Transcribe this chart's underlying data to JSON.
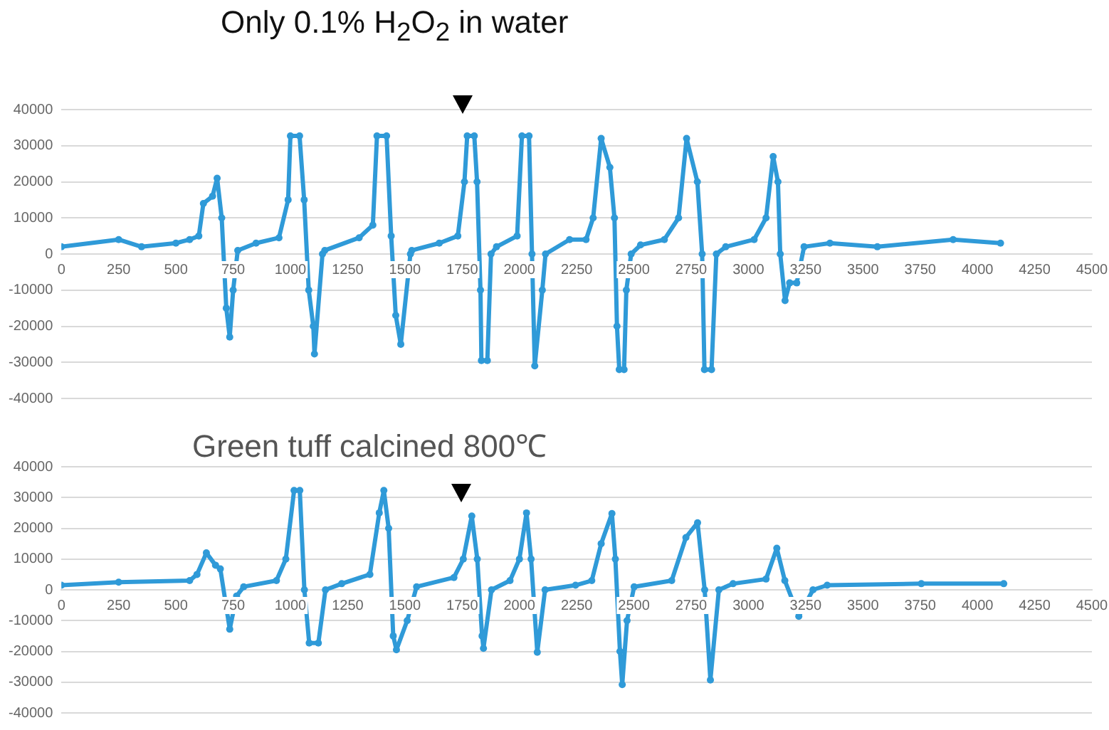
{
  "chart_data": [
    {
      "type": "line",
      "title": "Only 0.1% H$_{2}$O$_{2}$ in water",
      "marker": "circle",
      "grid": "y",
      "xlim": [
        0,
        4500
      ],
      "ylim": [
        -40000,
        40000
      ],
      "xticks": [
        0,
        250,
        500,
        750,
        1000,
        1250,
        1500,
        1750,
        2000,
        2250,
        2500,
        2750,
        3000,
        3250,
        3500,
        3750,
        4000,
        4250,
        4500
      ],
      "yticks": [
        -40000,
        -30000,
        -20000,
        -10000,
        0,
        10000,
        20000,
        30000,
        40000
      ],
      "series": [
        {
          "color": "#2f9ad8",
          "x": [
            0,
            250,
            350,
            500,
            560,
            600,
            620,
            660,
            680,
            700,
            720,
            735,
            750,
            770,
            850,
            950,
            990,
            1000,
            1040,
            1060,
            1080,
            1100,
            1105,
            1140,
            1150,
            1300,
            1360,
            1378,
            1420,
            1440,
            1460,
            1482,
            1524,
            1530,
            1650,
            1731,
            1760,
            1772,
            1803,
            1815,
            1830,
            1834,
            1860,
            1876,
            1900,
            1990,
            2011,
            2042,
            2055,
            2067,
            2100,
            2114,
            2219,
            2291,
            2322,
            2357,
            2395,
            2415,
            2426,
            2436,
            2457,
            2467,
            2488,
            2529,
            2633,
            2695,
            2730,
            2777,
            2798,
            2808,
            2839,
            2860,
            2901,
            3025,
            3077,
            3108,
            3129,
            3139,
            3160,
            3180,
            3211,
            3243,
            3356,
            3563,
            3894,
            4101
          ],
          "values": [
            2000,
            4000,
            2000,
            3000,
            4000,
            5000,
            14000,
            16000,
            21000,
            10000,
            -15000,
            -23000,
            -10000,
            1000,
            3000,
            4500,
            15000,
            32700,
            32700,
            15000,
            -10000,
            -20000,
            -27700,
            0,
            1000,
            4500,
            8000,
            32700,
            32700,
            5000,
            -17000,
            -25000,
            0,
            1000,
            3000,
            5000,
            20000,
            32700,
            32700,
            20000,
            -10000,
            -29500,
            -29500,
            0,
            2000,
            5000,
            32700,
            32700,
            0,
            -31000,
            -10000,
            0,
            4000,
            4000,
            10000,
            32000,
            24000,
            10000,
            -20000,
            -32000,
            -32000,
            -10000,
            0,
            2500,
            4000,
            10000,
            32000,
            20000,
            0,
            -32000,
            -32000,
            0,
            2000,
            4000,
            10000,
            27000,
            20000,
            0,
            -12900,
            -8000,
            -8000,
            2000,
            3000,
            2000,
            4000,
            3000
          ]
        }
      ]
    },
    {
      "type": "line",
      "title": "Green tuff calcined 800℃",
      "marker": "circle",
      "grid": "y",
      "xlim": [
        0,
        4500
      ],
      "ylim": [
        -40000,
        40000
      ],
      "xticks": [
        0,
        250,
        500,
        750,
        1000,
        1250,
        1500,
        1750,
        2000,
        2250,
        2500,
        2750,
        3000,
        3250,
        3500,
        3750,
        4000,
        4250,
        4500
      ],
      "yticks": [
        -40000,
        -30000,
        -20000,
        -10000,
        0,
        10000,
        20000,
        30000,
        40000
      ],
      "series": [
        {
          "color": "#2f9ad8",
          "x": [
            0,
            250,
            560,
            592,
            633,
            673,
            694,
            735,
            765,
            796,
            939,
            980,
            1016,
            1041,
            1061,
            1082,
            1122,
            1153,
            1224,
            1347,
            1388,
            1408,
            1429,
            1449,
            1463,
            1510,
            1551,
            1714,
            1755,
            1792,
            1816,
            1837,
            1843,
            1878,
            1959,
            2000,
            2031,
            2051,
            2078,
            2112,
            2245,
            2316,
            2357,
            2404,
            2419,
            2439,
            2449,
            2470,
            2501,
            2665,
            2727,
            2778,
            2809,
            2834,
            2871,
            2933,
            3077,
            3124,
            3159,
            3220,
            3282,
            3344,
            3755,
            4115
          ],
          "values": [
            1500,
            2500,
            3000,
            5000,
            12000,
            8000,
            6800,
            -12800,
            -2000,
            1000,
            3000,
            10000,
            32300,
            32300,
            0,
            -17300,
            -17300,
            0,
            2000,
            5000,
            25000,
            32300,
            20000,
            -15000,
            -19500,
            -10000,
            1000,
            4000,
            10000,
            24000,
            10000,
            -15000,
            -19000,
            0,
            3000,
            10000,
            25000,
            10000,
            -20300,
            0,
            1500,
            3000,
            15000,
            24800,
            10000,
            -20000,
            -30800,
            -10000,
            1000,
            3000,
            17000,
            21800,
            0,
            -29300,
            0,
            2000,
            3500,
            13500,
            3000,
            -8600,
            0,
            1500,
            2000,
            2000
          ]
        }
      ]
    }
  ]
}
